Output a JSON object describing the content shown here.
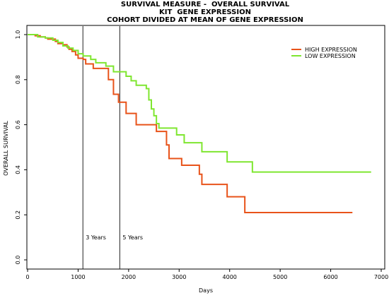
{
  "chart_data": {
    "type": "line",
    "title_lines": [
      "SURVIVAL MEASURE -  OVERALL SURVIVAL",
      "KIT  GENE EXPRESSION",
      "COHORT DIVIDED AT MEAN OF GENE EXPRESSION"
    ],
    "xlabel": "Days",
    "ylabel": "OVERALL SURVIVAL",
    "xlim": [
      0,
      7000
    ],
    "ylim": [
      0,
      1
    ],
    "x_ticks": [
      0,
      1000,
      2000,
      3000,
      4000,
      5000,
      6000,
      7000
    ],
    "y_ticks": [
      0.0,
      0.2,
      0.4,
      0.6,
      0.8,
      1.0
    ],
    "y_tick_labels": [
      "0.0",
      "0.2",
      "0.4",
      "0.6",
      "0.8",
      "1.0"
    ],
    "grid": false,
    "legend_position": "top-right",
    "vlines": [
      {
        "x": 1095,
        "label": "3 Years"
      },
      {
        "x": 1825,
        "label": "5 Years"
      }
    ],
    "series": [
      {
        "name": "HIGH EXPRESSION",
        "color": "#E8531A",
        "x": [
          0,
          150,
          250,
          350,
          400,
          550,
          600,
          700,
          780,
          820,
          880,
          950,
          1000,
          1100,
          1150,
          1300,
          1550,
          1600,
          1700,
          1800,
          1950,
          2150,
          2550,
          2750,
          2800,
          3050,
          3400,
          3450,
          3950,
          4300,
          6430
        ],
        "y": [
          1.0,
          0.995,
          0.99,
          0.985,
          0.98,
          0.97,
          0.96,
          0.955,
          0.945,
          0.935,
          0.925,
          0.91,
          0.895,
          0.89,
          0.87,
          0.85,
          0.85,
          0.8,
          0.735,
          0.7,
          0.65,
          0.6,
          0.57,
          0.51,
          0.45,
          0.42,
          0.38,
          0.335,
          0.28,
          0.21,
          0.21
        ]
      },
      {
        "name": "LOW EXPRESSION",
        "color": "#7FE630",
        "x": [
          0,
          200,
          350,
          500,
          600,
          700,
          800,
          900,
          1000,
          1100,
          1250,
          1350,
          1550,
          1700,
          1950,
          2050,
          2150,
          2350,
          2400,
          2450,
          2500,
          2550,
          2600,
          2950,
          3100,
          3450,
          3950,
          4450,
          6800
        ],
        "y": [
          1.0,
          0.99,
          0.985,
          0.975,
          0.965,
          0.95,
          0.94,
          0.93,
          0.915,
          0.905,
          0.89,
          0.875,
          0.86,
          0.835,
          0.815,
          0.795,
          0.775,
          0.76,
          0.71,
          0.67,
          0.64,
          0.605,
          0.585,
          0.555,
          0.52,
          0.48,
          0.435,
          0.39,
          0.39
        ]
      }
    ],
    "text": {
      "legend_high": "HIGH EXPRESSION",
      "legend_low": "LOW EXPRESSION"
    }
  }
}
